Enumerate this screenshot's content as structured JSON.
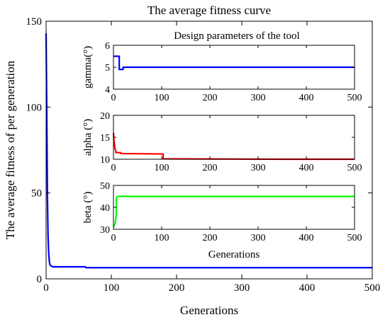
{
  "chart_data": [
    {
      "type": "line",
      "title": "The average fitness curve",
      "xlabel": "Generations",
      "ylabel": "The average fitness of per generation",
      "xlim": [
        0,
        500
      ],
      "ylim": [
        0,
        150
      ],
      "xticks": [
        "0",
        "100",
        "200",
        "300",
        "400",
        "500"
      ],
      "yticks": [
        "0",
        "50",
        "100",
        "150"
      ],
      "series": [
        {
          "color": "#0000ff",
          "x": [
            0,
            1,
            2,
            3,
            4,
            5,
            6,
            8,
            10,
            15,
            20,
            30,
            50,
            60,
            61,
            100,
            200,
            300,
            400,
            500
          ],
          "y": [
            143,
            100,
            50,
            25,
            15,
            10,
            8,
            7.5,
            7,
            7,
            7,
            7,
            7,
            7,
            6.5,
            6.5,
            6.5,
            6.5,
            6.5,
            6.5
          ]
        }
      ]
    },
    {
      "type": "line",
      "title": "Design parameters of the tool",
      "xlabel": "",
      "ylabel": "gamma(°)",
      "xlim": [
        0,
        500
      ],
      "ylim": [
        4,
        6
      ],
      "xticks": [
        "0",
        "100",
        "200",
        "300",
        "400",
        "500"
      ],
      "yticks": [
        "4",
        "5",
        "6"
      ],
      "series": [
        {
          "color": "#0000ff",
          "x": [
            0,
            12,
            12,
            20,
            20,
            25,
            25,
            500
          ],
          "y": [
            5.5,
            5.5,
            4.9,
            4.9,
            5.0,
            5.0,
            5.0,
            5.0
          ]
        }
      ]
    },
    {
      "type": "line",
      "title": "",
      "xlabel": "",
      "ylabel": "alpha (°)",
      "xlim": [
        0,
        500
      ],
      "ylim": [
        10,
        20
      ],
      "xticks": [
        "0",
        "100",
        "200",
        "300",
        "400",
        "500"
      ],
      "yticks": [
        "10",
        "15",
        "20"
      ],
      "series": [
        {
          "color": "#ff0000",
          "x": [
            0,
            1,
            3,
            5,
            5,
            15,
            15,
            103,
            103,
            350,
            500
          ],
          "y": [
            16,
            14.5,
            12.5,
            11.8,
            11.5,
            11.5,
            11.3,
            11.2,
            10.1,
            10.0,
            10.0
          ]
        }
      ]
    },
    {
      "type": "line",
      "title": "",
      "xlabel": "Generations",
      "ylabel": "beta (°)",
      "xlim": [
        0,
        500
      ],
      "ylim": [
        30,
        50
      ],
      "xticks": [
        "0",
        "100",
        "200",
        "300",
        "400",
        "500"
      ],
      "yticks": [
        "30",
        "40",
        "50"
      ],
      "series": [
        {
          "color": "#00ff00",
          "x": [
            0,
            2,
            4,
            5,
            6,
            6,
            8,
            500
          ],
          "y": [
            31,
            32,
            33,
            35,
            37,
            44.5,
            45,
            45
          ]
        }
      ]
    }
  ]
}
